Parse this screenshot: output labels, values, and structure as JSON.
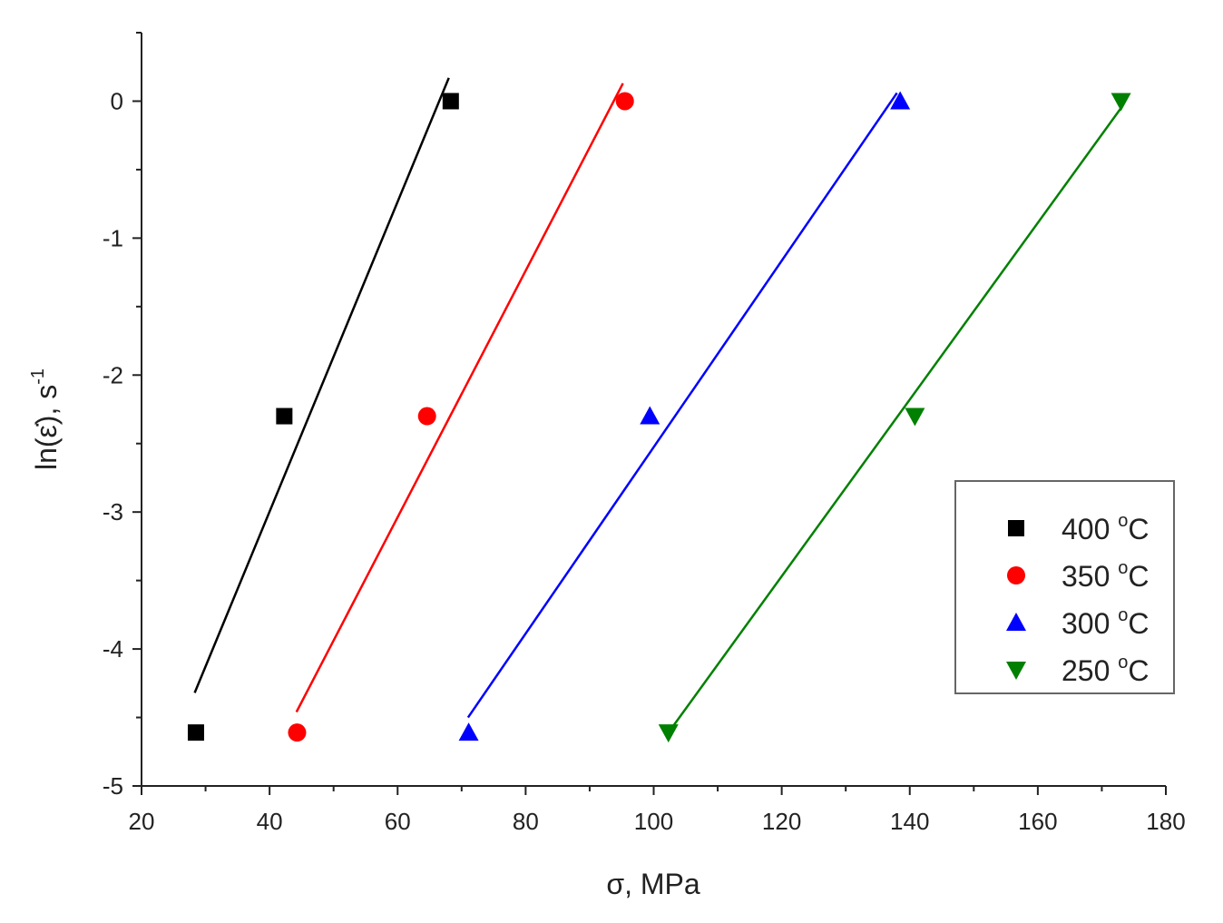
{
  "chart_data": {
    "type": "scatter",
    "title": "",
    "xlabel": "σ, MPa",
    "ylabel": "ln(ε̇), s",
    "ylabel_sup": "-1",
    "xlim": [
      20,
      180
    ],
    "ylim": [
      -5,
      0.5
    ],
    "x_ticks": [
      20,
      40,
      60,
      80,
      100,
      120,
      140,
      160,
      180
    ],
    "y_ticks": [
      0,
      -1,
      -2,
      -3,
      -4,
      -5
    ],
    "x_tick_labels": [
      "20",
      "40",
      "60",
      "80",
      "100",
      "120",
      "140",
      "160",
      "180"
    ],
    "y_tick_labels": [
      "0",
      "-1",
      "-2",
      "-3",
      "-4",
      "-5"
    ],
    "legend_position": "center-right",
    "series": [
      {
        "name": "400 °C",
        "legend_label": "400",
        "legend_unit": "C",
        "legend_deg": "o",
        "color": "#000000",
        "marker": "square",
        "points": [
          [
            28.5,
            -4.61
          ],
          [
            42.3,
            -2.3
          ],
          [
            68.3,
            0.0
          ]
        ],
        "fit": [
          [
            28.3,
            -4.32
          ],
          [
            68.0,
            0.17
          ]
        ]
      },
      {
        "name": "350 °C",
        "legend_label": "350",
        "legend_unit": "C",
        "legend_deg": "o",
        "color": "#ff0000",
        "marker": "circle",
        "points": [
          [
            44.3,
            -4.61
          ],
          [
            64.6,
            -2.3
          ],
          [
            95.5,
            0.0
          ]
        ],
        "fit": [
          [
            44.2,
            -4.46
          ],
          [
            95.2,
            0.13
          ]
        ]
      },
      {
        "name": "300 °C",
        "legend_label": "300",
        "legend_unit": "C",
        "legend_deg": "o",
        "color": "#0000ff",
        "marker": "triangle-up",
        "points": [
          [
            71.1,
            -4.61
          ],
          [
            99.4,
            -2.3
          ],
          [
            138.5,
            0.0
          ]
        ],
        "fit": [
          [
            71.0,
            -4.5
          ],
          [
            138.0,
            0.06
          ]
        ]
      },
      {
        "name": "250 °C",
        "legend_label": "250",
        "legend_unit": "C",
        "legend_deg": "o",
        "color": "#008000",
        "marker": "triangle-down",
        "points": [
          [
            102.3,
            -4.61
          ],
          [
            140.8,
            -2.3
          ],
          [
            173.0,
            0.0
          ]
        ],
        "fit": [
          [
            102.0,
            -4.63
          ],
          [
            173.0,
            -0.05
          ]
        ]
      }
    ]
  }
}
